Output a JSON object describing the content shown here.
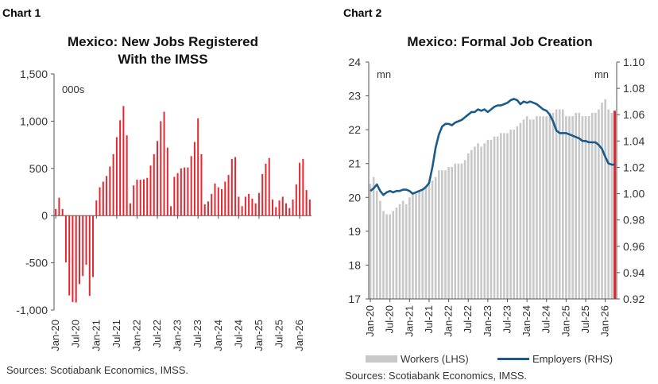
{
  "chart1": {
    "label": "Chart 1",
    "title_line1": "Mexico: New Jobs Registered",
    "title_line2": "With the IMSS",
    "source": "Sources: Scotiabank Economics, IMSS."
  },
  "chart2": {
    "label": "Chart 2",
    "title": "Mexico: Formal Job Creation",
    "source": "Sources: Scotiabank Economics, IMSS.",
    "legend_bar": "Workers (LHS)",
    "legend_line": "Employers (RHS)"
  },
  "chart_data": [
    {
      "type": "bar",
      "title": "Mexico: New Jobs Registered With the IMSS",
      "unit_label": "000s",
      "color": "#e32831",
      "ylim": [
        -1000,
        1500
      ],
      "yticks": [
        -1000,
        -500,
        0,
        500,
        1000,
        1500
      ],
      "ytick_labels": [
        "-1,000",
        "-500",
        "0",
        "500",
        "1,000",
        "1,500"
      ],
      "xtick_labels": [
        "Jan-20",
        "Jul-20",
        "Jan-21",
        "Jul-21",
        "Jan-22",
        "Jul-22",
        "Jan-23",
        "Jul-23",
        "Jan-24",
        "Jul-24",
        "Jan-25",
        "Jul-25",
        "Jan-26"
      ],
      "xtick_index": [
        0,
        6,
        12,
        18,
        24,
        30,
        36,
        42,
        48,
        54,
        60,
        66,
        72
      ],
      "grid": false,
      "values": [
        70,
        190,
        70,
        -495,
        -845,
        -915,
        -920,
        -725,
        -640,
        -520,
        -850,
        -650,
        160,
        300,
        360,
        420,
        520,
        650,
        830,
        1010,
        1160,
        850,
        130,
        320,
        380,
        380,
        385,
        400,
        530,
        650,
        790,
        1000,
        1100,
        720,
        100,
        410,
        450,
        500,
        510,
        510,
        630,
        780,
        1030,
        650,
        120,
        150,
        230,
        340,
        300,
        280,
        360,
        430,
        600,
        620,
        200,
        100,
        200,
        230,
        180,
        130,
        240,
        440,
        550,
        610,
        170,
        90,
        160,
        200,
        130,
        80,
        170,
        330,
        560,
        600,
        270,
        170
      ]
    },
    {
      "type": "bar+line",
      "title": "Mexico: Formal Job Creation",
      "left_unit": "mn",
      "right_unit": "mn",
      "ylim_left": [
        17,
        24
      ],
      "ylim_right": [
        0.92,
        1.1
      ],
      "yticks_left": [
        17,
        18,
        19,
        20,
        21,
        22,
        23,
        24
      ],
      "yticks_right": [
        0.92,
        0.94,
        0.96,
        0.98,
        1.0,
        1.02,
        1.04,
        1.06,
        1.08,
        1.1
      ],
      "ytick_labels_right": [
        "0.92",
        "0.94",
        "0.96",
        "0.98",
        "1.00",
        "1.02",
        "1.04",
        "1.06",
        "1.08",
        "1.10"
      ],
      "xtick_labels": [
        "Jan-20",
        "Jul-20",
        "Jan-21",
        "Jul-21",
        "Jan-22",
        "Jul-22",
        "Jan-23",
        "Jul-23",
        "Jan-24",
        "Jul-24",
        "Jan-25",
        "Jul-25",
        "Jan-26"
      ],
      "xtick_index": [
        0,
        6,
        12,
        18,
        24,
        30,
        36,
        42,
        48,
        54,
        60,
        66,
        72
      ],
      "grid": false,
      "legend_placement": "bottom",
      "series": [
        {
          "name": "Workers (LHS)",
          "axis": "left",
          "color": "#c8c8c8",
          "values": [
            20.4,
            20.6,
            20.2,
            19.9,
            19.6,
            19.5,
            19.5,
            19.6,
            19.7,
            19.8,
            19.9,
            19.8,
            20.0,
            20.1,
            20.1,
            20.2,
            20.2,
            20.3,
            20.4,
            20.5,
            20.6,
            20.8,
            20.8,
            20.8,
            20.9,
            20.9,
            21.0,
            21.0,
            21.0,
            21.1,
            21.3,
            21.4,
            21.5,
            21.6,
            21.5,
            21.6,
            21.7,
            21.7,
            21.8,
            21.8,
            21.9,
            21.9,
            21.9,
            22.0,
            22.0,
            22.1,
            22.2,
            22.3,
            22.4,
            22.3,
            22.3,
            22.4,
            22.4,
            22.4,
            22.4,
            22.5,
            22.5,
            22.6,
            22.6,
            22.6,
            22.4,
            22.4,
            22.4,
            22.5,
            22.5,
            22.4,
            22.4,
            22.4,
            22.5,
            22.5,
            22.6,
            22.8,
            22.9,
            22.6,
            22.5,
            22.5
          ]
        },
        {
          "name": "Employers (RHS)",
          "axis": "right",
          "color": "#1a5b8a",
          "values": [
            1.002,
            1.004,
            1.007,
            1.002,
            0.999,
            1.001,
            1.002,
            1.001,
            1.002,
            1.002,
            1.003,
            1.003,
            1.002,
            1.0,
            1.001,
            1.002,
            1.003,
            1.005,
            1.008,
            1.02,
            1.035,
            1.045,
            1.051,
            1.053,
            1.053,
            1.052,
            1.054,
            1.055,
            1.056,
            1.058,
            1.06,
            1.062,
            1.062,
            1.064,
            1.063,
            1.064,
            1.062,
            1.064,
            1.066,
            1.067,
            1.067,
            1.068,
            1.069,
            1.071,
            1.072,
            1.071,
            1.068,
            1.07,
            1.069,
            1.07,
            1.069,
            1.068,
            1.066,
            1.064,
            1.063,
            1.06,
            1.055,
            1.048,
            1.046,
            1.046,
            1.046,
            1.045,
            1.044,
            1.043,
            1.042,
            1.04,
            1.04,
            1.039,
            1.039,
            1.039,
            1.037,
            1.034,
            1.028,
            1.023,
            1.022,
            1.022
          ]
        }
      ]
    }
  ]
}
